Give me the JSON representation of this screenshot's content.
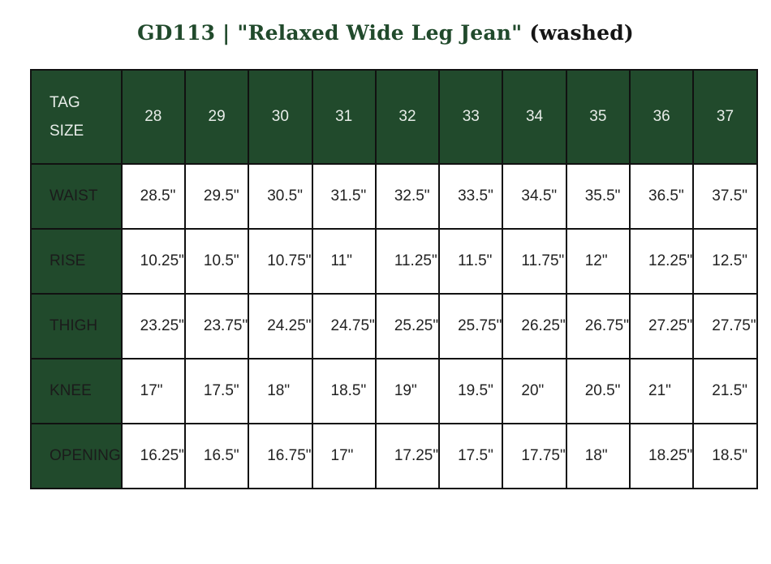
{
  "title": {
    "main": "GD113 | \"Relaxed Wide Leg Jean\"",
    "suffix": "(washed)"
  },
  "table": {
    "header_label": "TAG SIZE",
    "sizes": [
      "28",
      "29",
      "30",
      "31",
      "32",
      "33",
      "34",
      "35",
      "36",
      "37"
    ],
    "rows": [
      {
        "label": "WAIST",
        "values": [
          "28.5\"",
          "29.5\"",
          "30.5\"",
          "31.5\"",
          "32.5\"",
          "33.5\"",
          "34.5\"",
          "35.5\"",
          "36.5\"",
          "37.5\""
        ]
      },
      {
        "label": "RISE",
        "values": [
          "10.25\"",
          "10.5\"",
          "10.75\"",
          "11\"",
          "11.25\"",
          "11.5\"",
          "11.75\"",
          "12\"",
          "12.25\"",
          "12.5\""
        ]
      },
      {
        "label": "THIGH",
        "values": [
          "23.25\"",
          "23.75\"",
          "24.25\"",
          "24.75\"",
          "25.25\"",
          "25.75\"",
          "26.25\"",
          "26.75\"",
          "27.25\"",
          "27.75\""
        ]
      },
      {
        "label": "KNEE",
        "values": [
          "17\"",
          "17.5\"",
          "18\"",
          "18.5\"",
          "19\"",
          "19.5\"",
          "20\"",
          "20.5\"",
          "21\"",
          "21.5\""
        ]
      },
      {
        "label": "OPENING",
        "values": [
          "16.25\"",
          "16.5\"",
          "16.75\"",
          "17\"",
          "17.25\"",
          "17.5\"",
          "17.75\"",
          "18\"",
          "18.25\"",
          "18.5\""
        ]
      }
    ]
  },
  "colors": {
    "header_green": "#214a2c",
    "title_green": "#214a2c",
    "border": "#111111"
  }
}
